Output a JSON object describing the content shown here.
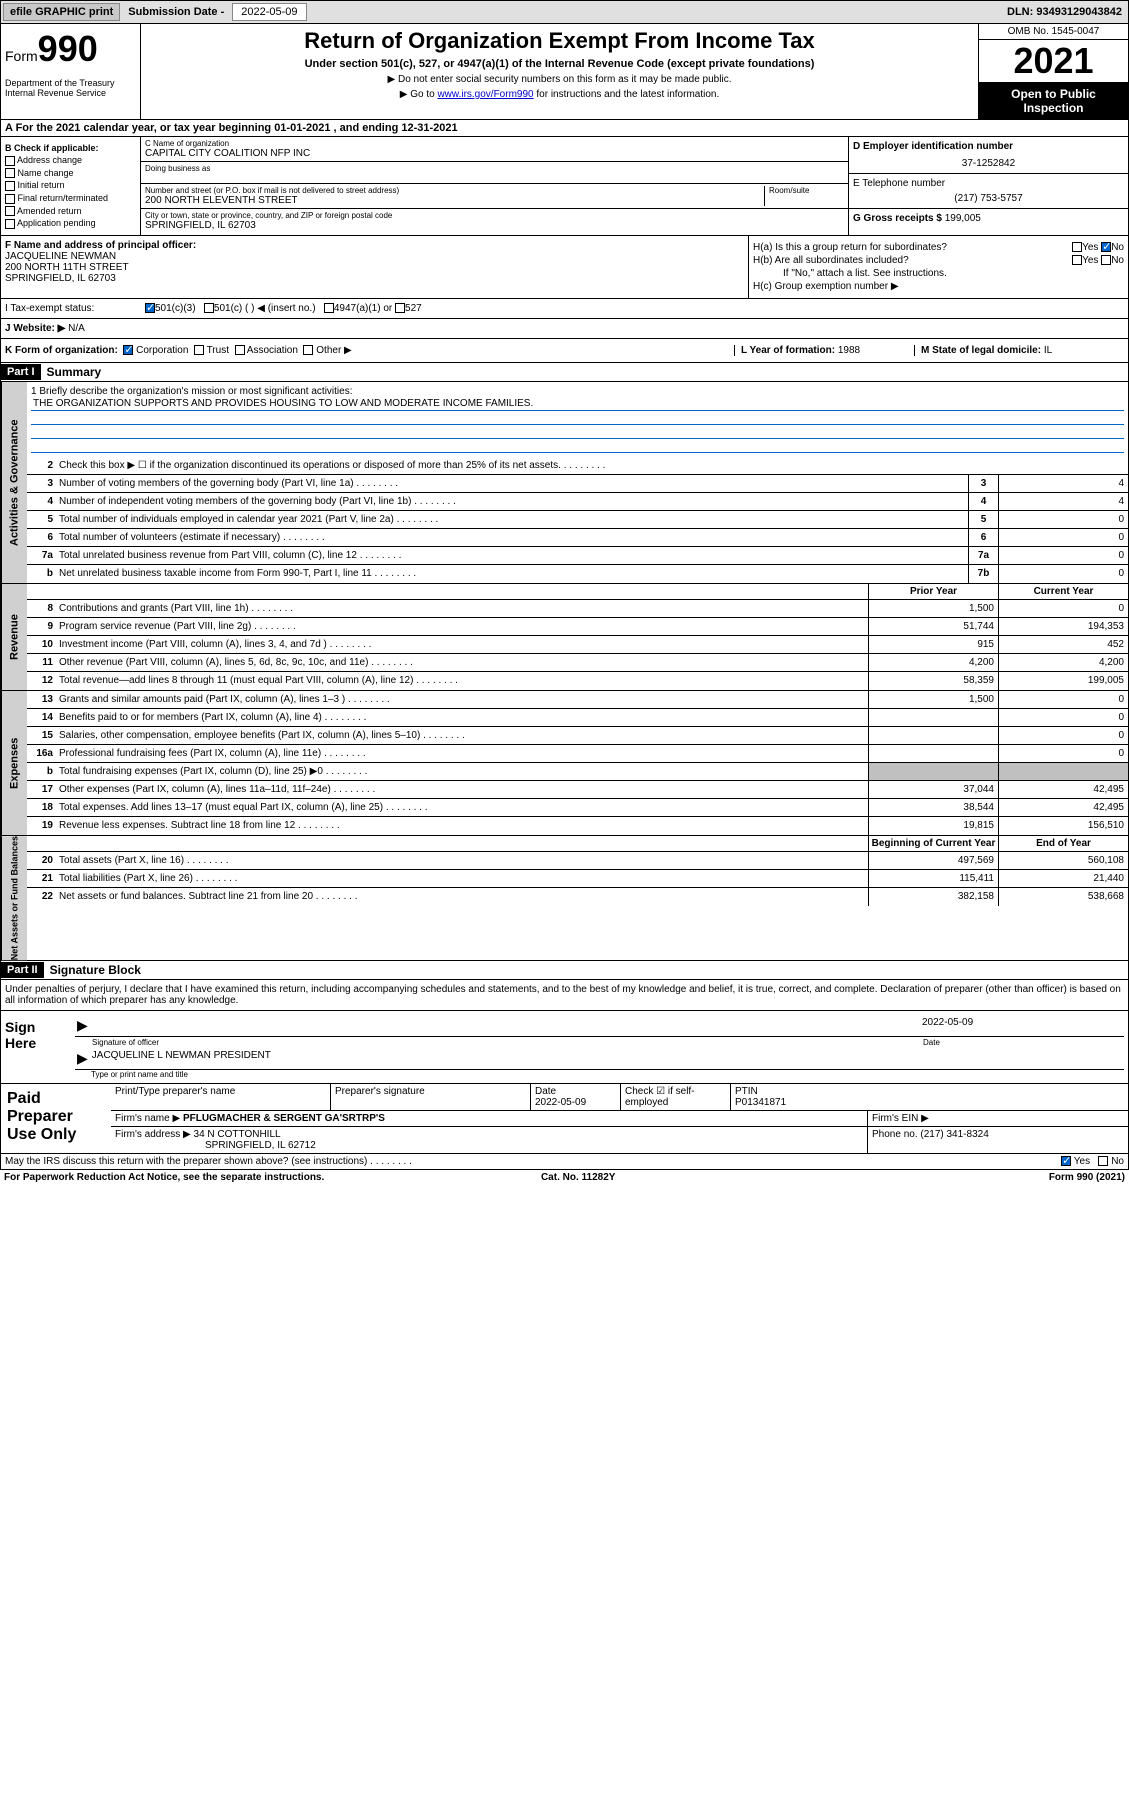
{
  "topbar": {
    "efile": "efile GRAPHIC print",
    "submission_label": "Submission Date - ",
    "submission_date": "2022-05-09",
    "dln_label": "DLN: ",
    "dln": "93493129043842"
  },
  "header": {
    "form_prefix": "Form",
    "form_number": "990",
    "dept": "Department of the Treasury\nInternal Revenue Service",
    "title": "Return of Organization Exempt From Income Tax",
    "subtitle": "Under section 501(c), 527, or 4947(a)(1) of the Internal Revenue Code (except private foundations)",
    "instr1": "▶ Do not enter social security numbers on this form as it may be made public.",
    "instr2_pre": "▶ Go to ",
    "instr2_link": "www.irs.gov/Form990",
    "instr2_post": " for instructions and the latest information.",
    "omb": "OMB No. 1545-0047",
    "year": "2021",
    "open_public": "Open to Public Inspection"
  },
  "row_a": "A For the 2021 calendar year, or tax year beginning 01-01-2021    , and ending 12-31-2021",
  "col_b": {
    "hdr": "B Check if applicable:",
    "items": [
      "Address change",
      "Name change",
      "Initial return",
      "Final return/terminated",
      "Amended return",
      "Application pending"
    ]
  },
  "col_c": {
    "name_label": "C Name of organization",
    "name": "CAPITAL CITY COALITION NFP INC",
    "dba_label": "Doing business as",
    "dba": "",
    "addr_label": "Number and street (or P.O. box if mail is not delivered to street address)",
    "room_label": "Room/suite",
    "addr": "200 NORTH ELEVENTH STREET",
    "city_label": "City or town, state or province, country, and ZIP or foreign postal code",
    "city": "SPRINGFIELD, IL  62703"
  },
  "col_d": {
    "ein_label": "D Employer identification number",
    "ein": "37-1252842",
    "phone_label": "E Telephone number",
    "phone": "(217) 753-5757",
    "gross_label": "G Gross receipts $ ",
    "gross": "199,005"
  },
  "col_f": {
    "label": "F Name and address of principal officer:",
    "name": "JACQUELINE NEWMAN",
    "addr1": "200 NORTH 11TH STREET",
    "addr2": "SPRINGFIELD, IL  62703"
  },
  "col_h": {
    "ha": "H(a)  Is this a group return for subordinates?",
    "ha_no": "No",
    "hb": "H(b)  Are all subordinates included?",
    "hb_note": "If \"No,\" attach a list. See instructions.",
    "hc": "H(c)  Group exemption number ▶"
  },
  "row_i": {
    "label": "I   Tax-exempt status:",
    "opt1": "501(c)(3)",
    "opt2": "501(c) (  ) ◀ (insert no.)",
    "opt3": "4947(a)(1) or",
    "opt4": "527"
  },
  "row_j": {
    "label": "J   Website: ▶",
    "val": "N/A"
  },
  "row_k": {
    "label": "K Form of organization:",
    "corp": "Corporation",
    "trust": "Trust",
    "assoc": "Association",
    "other": "Other ▶",
    "l": "L Year of formation: ",
    "l_val": "1988",
    "m": "M State of legal domicile: ",
    "m_val": "IL"
  },
  "part1": {
    "hdr": "Part I",
    "title": "Summary"
  },
  "mission": {
    "q": "1   Briefly describe the organization's mission or most significant activities:",
    "text": "THE ORGANIZATION SUPPORTS AND PROVIDES HOUSING TO LOW AND MODERATE INCOME FAMILIES."
  },
  "gov_rows": [
    {
      "n": "2",
      "d": "Check this box ▶ ☐  if the organization discontinued its operations or disposed of more than 25% of its net assets.",
      "box": "",
      "v": ""
    },
    {
      "n": "3",
      "d": "Number of voting members of the governing body (Part VI, line 1a)",
      "box": "3",
      "v": "4"
    },
    {
      "n": "4",
      "d": "Number of independent voting members of the governing body (Part VI, line 1b)",
      "box": "4",
      "v": "4"
    },
    {
      "n": "5",
      "d": "Total number of individuals employed in calendar year 2021 (Part V, line 2a)",
      "box": "5",
      "v": "0"
    },
    {
      "n": "6",
      "d": "Total number of volunteers (estimate if necessary)",
      "box": "6",
      "v": "0"
    },
    {
      "n": "7a",
      "d": "Total unrelated business revenue from Part VIII, column (C), line 12",
      "box": "7a",
      "v": "0"
    },
    {
      "n": "b",
      "d": "Net unrelated business taxable income from Form 990-T, Part I, line 11",
      "box": "7b",
      "v": "0"
    }
  ],
  "col_headers": {
    "prior": "Prior Year",
    "current": "Current Year",
    "bgn": "Beginning of Current Year",
    "end": "End of Year"
  },
  "revenue_rows": [
    {
      "n": "8",
      "d": "Contributions and grants (Part VIII, line 1h)",
      "p": "1,500",
      "c": "0"
    },
    {
      "n": "9",
      "d": "Program service revenue (Part VIII, line 2g)",
      "p": "51,744",
      "c": "194,353"
    },
    {
      "n": "10",
      "d": "Investment income (Part VIII, column (A), lines 3, 4, and 7d )",
      "p": "915",
      "c": "452"
    },
    {
      "n": "11",
      "d": "Other revenue (Part VIII, column (A), lines 5, 6d, 8c, 9c, 10c, and 11e)",
      "p": "4,200",
      "c": "4,200"
    },
    {
      "n": "12",
      "d": "Total revenue—add lines 8 through 11 (must equal Part VIII, column (A), line 12)",
      "p": "58,359",
      "c": "199,005"
    }
  ],
  "expense_rows": [
    {
      "n": "13",
      "d": "Grants and similar amounts paid (Part IX, column (A), lines 1–3 )",
      "p": "1,500",
      "c": "0"
    },
    {
      "n": "14",
      "d": "Benefits paid to or for members (Part IX, column (A), line 4)",
      "p": "",
      "c": "0"
    },
    {
      "n": "15",
      "d": "Salaries, other compensation, employee benefits (Part IX, column (A), lines 5–10)",
      "p": "",
      "c": "0"
    },
    {
      "n": "16a",
      "d": "Professional fundraising fees (Part IX, column (A), line 11e)",
      "p": "",
      "c": "0"
    },
    {
      "n": "b",
      "d": "Total fundraising expenses (Part IX, column (D), line 25) ▶0",
      "p": "shaded",
      "c": "shaded"
    },
    {
      "n": "17",
      "d": "Other expenses (Part IX, column (A), lines 11a–11d, 11f–24e)",
      "p": "37,044",
      "c": "42,495"
    },
    {
      "n": "18",
      "d": "Total expenses. Add lines 13–17 (must equal Part IX, column (A), line 25)",
      "p": "38,544",
      "c": "42,495"
    },
    {
      "n": "19",
      "d": "Revenue less expenses. Subtract line 18 from line 12",
      "p": "19,815",
      "c": "156,510"
    }
  ],
  "netassets_rows": [
    {
      "n": "20",
      "d": "Total assets (Part X, line 16)",
      "p": "497,569",
      "c": "560,108"
    },
    {
      "n": "21",
      "d": "Total liabilities (Part X, line 26)",
      "p": "115,411",
      "c": "21,440"
    },
    {
      "n": "22",
      "d": "Net assets or fund balances. Subtract line 21 from line 20",
      "p": "382,158",
      "c": "538,668"
    }
  ],
  "sidelabels": {
    "gov": "Activities & Governance",
    "rev": "Revenue",
    "exp": "Expenses",
    "net": "Net Assets or Fund Balances"
  },
  "part2": {
    "hdr": "Part II",
    "title": "Signature Block"
  },
  "sig": {
    "intro": "Under penalties of perjury, I declare that I have examined this return, including accompanying schedules and statements, and to the best of my knowledge and belief, it is true, correct, and complete. Declaration of preparer (other than officer) is based on all information of which preparer has any knowledge.",
    "here": "Sign Here",
    "officer_label": "Signature of officer",
    "date_label": "Date",
    "date": "2022-05-09",
    "name": "JACQUELINE L NEWMAN  PRESIDENT",
    "name_label": "Type or print name and title"
  },
  "prep": {
    "title": "Paid Preparer Use Only",
    "h1": "Print/Type preparer's name",
    "h2": "Preparer's signature",
    "h3": "Date",
    "h3v": "2022-05-09",
    "h4": "Check ☑ if self-employed",
    "h5": "PTIN",
    "h5v": "P01341871",
    "firm_label": "Firm's name    ▶",
    "firm": "PFLUGMACHER & SERGENT GA'SRTRP'S",
    "ein_label": "Firm's EIN ▶",
    "addr_label": "Firm's address ▶",
    "addr1": "34 N COTTONHILL",
    "addr2": "SPRINGFIELD, IL  62712",
    "phone_label": "Phone no. ",
    "phone": "(217) 341-8324"
  },
  "footer": {
    "discuss": "May the IRS discuss this return with the preparer shown above? (see instructions)",
    "yes": "Yes",
    "no": "No",
    "paperwork": "For Paperwork Reduction Act Notice, see the separate instructions.",
    "cat": "Cat. No. 11282Y",
    "form": "Form 990 (2021)"
  }
}
